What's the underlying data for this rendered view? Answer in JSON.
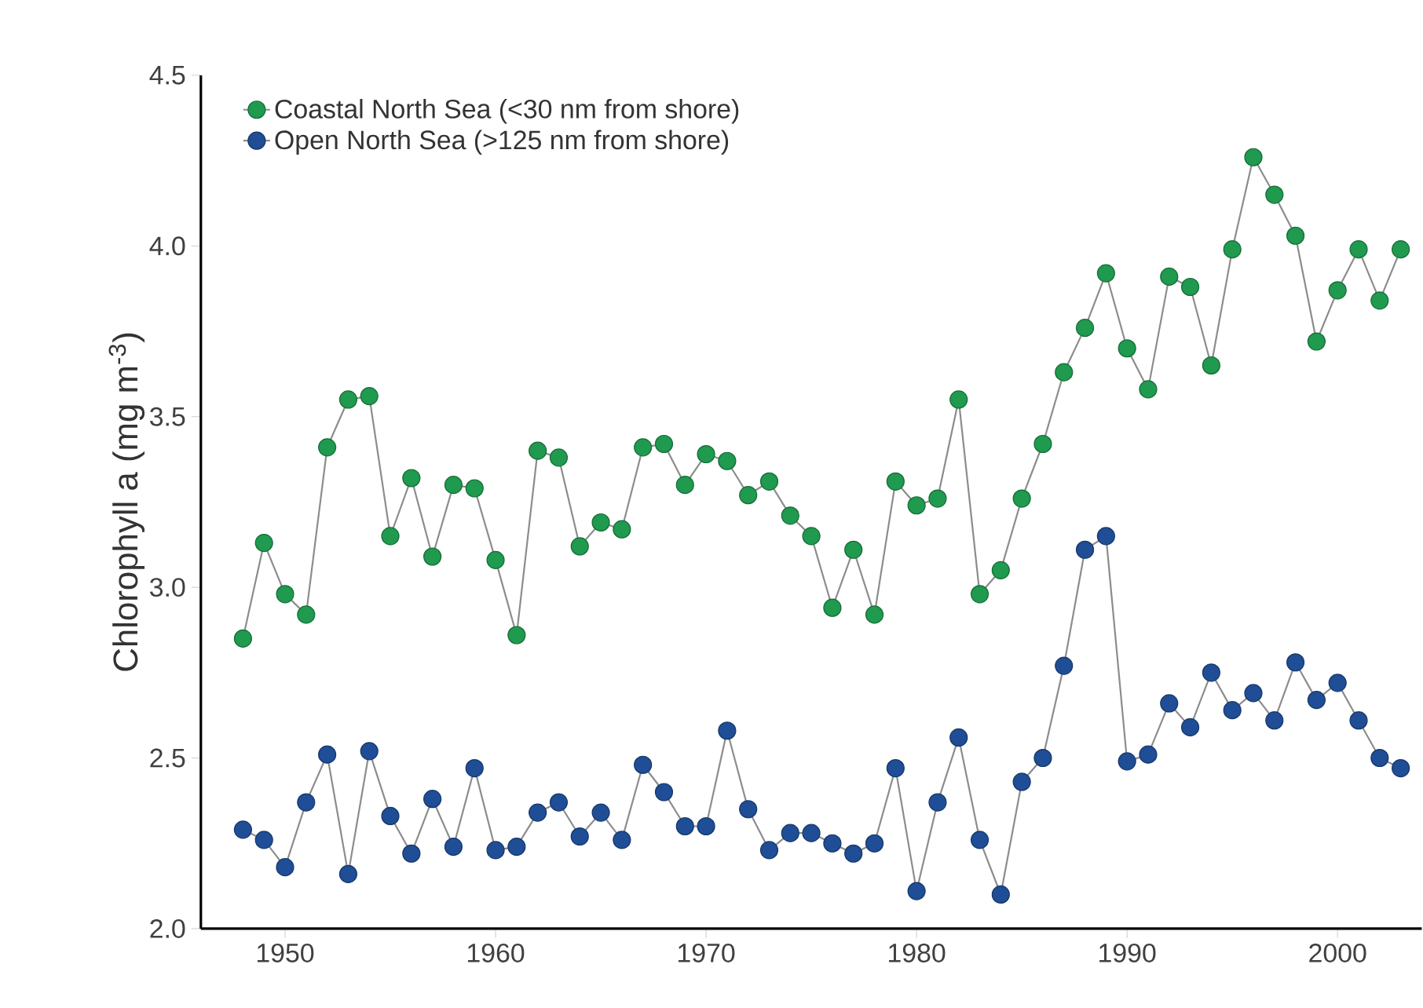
{
  "chart_data": {
    "type": "line",
    "ylabel": "Chlorophyll a (mg m$^{-3}$)",
    "x": [
      1948,
      1949,
      1950,
      1951,
      1952,
      1953,
      1954,
      1955,
      1956,
      1957,
      1958,
      1959,
      1960,
      1961,
      1962,
      1963,
      1964,
      1965,
      1966,
      1967,
      1968,
      1969,
      1970,
      1971,
      1972,
      1973,
      1974,
      1975,
      1976,
      1977,
      1978,
      1979,
      1980,
      1981,
      1982,
      1983,
      1984,
      1985,
      1986,
      1987,
      1988,
      1989,
      1990,
      1991,
      1992,
      1993,
      1994,
      1995,
      1996,
      1997,
      1998,
      1999,
      2000,
      2001,
      2002,
      2003
    ],
    "series": [
      {
        "name": "Coastal North Sea (<30 nm from shore)",
        "color": "#1f9a4f",
        "values": [
          2.85,
          3.13,
          2.98,
          2.92,
          3.41,
          3.55,
          3.56,
          3.15,
          3.32,
          3.09,
          3.3,
          3.29,
          3.08,
          2.86,
          3.4,
          3.38,
          3.12,
          3.19,
          3.17,
          3.41,
          3.42,
          3.3,
          3.39,
          3.37,
          3.27,
          3.31,
          3.21,
          3.15,
          2.94,
          3.11,
          2.92,
          3.31,
          3.24,
          3.26,
          3.55,
          2.98,
          3.05,
          3.26,
          3.42,
          3.63,
          3.76,
          3.92,
          3.7,
          3.58,
          3.91,
          3.88,
          3.65,
          3.99,
          4.26,
          4.15,
          4.03,
          3.72,
          3.87,
          3.99,
          3.84,
          3.99
        ]
      },
      {
        "name": "Open North Sea (>125 nm from shore)",
        "color": "#1f4e96",
        "values": [
          2.29,
          2.26,
          2.18,
          2.37,
          2.51,
          2.16,
          2.52,
          2.33,
          2.22,
          2.38,
          2.24,
          2.47,
          2.23,
          2.24,
          2.34,
          2.37,
          2.27,
          2.34,
          2.26,
          2.48,
          2.4,
          2.3,
          2.3,
          2.58,
          2.35,
          2.23,
          2.28,
          2.28,
          2.25,
          2.22,
          2.25,
          2.47,
          2.11,
          2.37,
          2.56,
          2.26,
          2.1,
          2.43,
          2.5,
          2.77,
          3.11,
          3.15,
          2.49,
          2.51,
          2.66,
          2.59,
          2.75,
          2.64,
          2.69,
          2.61,
          2.78,
          2.67,
          2.72,
          2.61,
          2.5,
          2.47
        ]
      }
    ],
    "xlim": [
      1946,
      2004
    ],
    "ylim": [
      2.0,
      4.5
    ],
    "xticks": [
      1950,
      1960,
      1970,
      1980,
      1990,
      2000
    ],
    "yticks": [
      {
        "value": 2.0,
        "label": "2.0"
      },
      {
        "value": 2.5,
        "label": "2.5"
      },
      {
        "value": 3.0,
        "label": "3.0"
      },
      {
        "value": 3.5,
        "label": "3.5"
      },
      {
        "value": 4.0,
        "label": "4.0"
      },
      {
        "value": 4.5,
        "label": "4.5"
      }
    ],
    "grid": false,
    "legend": "top left",
    "marker": "circle",
    "line_style": "solid"
  }
}
